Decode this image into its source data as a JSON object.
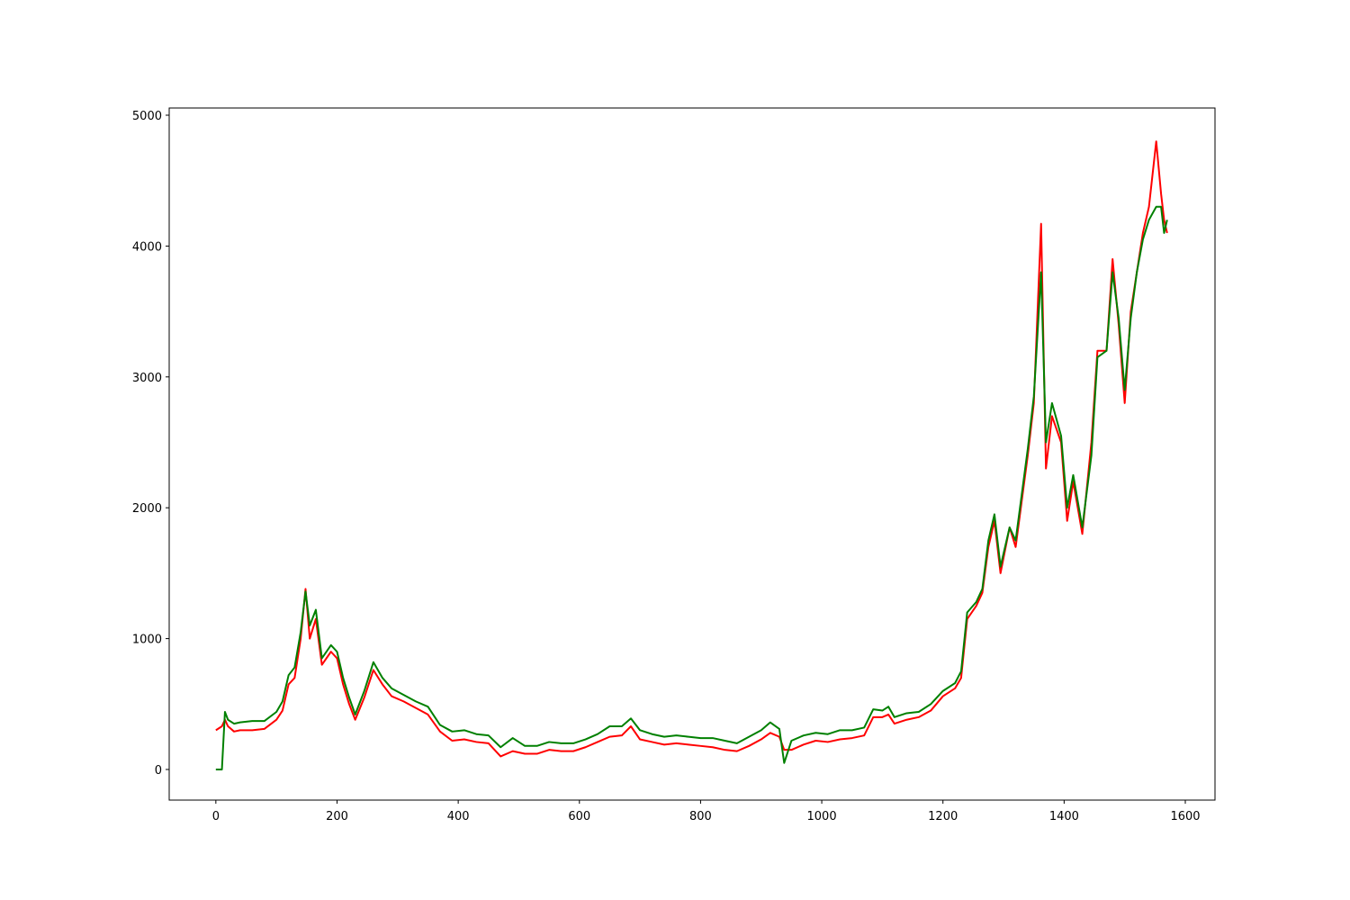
{
  "chart_data": {
    "type": "line",
    "x": [
      0,
      10,
      15,
      20,
      30,
      40,
      60,
      80,
      100,
      110,
      120,
      130,
      140,
      148,
      155,
      165,
      175,
      190,
      200,
      210,
      220,
      230,
      245,
      260,
      275,
      290,
      310,
      330,
      350,
      370,
      390,
      410,
      430,
      450,
      470,
      490,
      510,
      530,
      550,
      570,
      590,
      610,
      630,
      650,
      670,
      685,
      700,
      720,
      740,
      760,
      780,
      800,
      820,
      840,
      860,
      880,
      900,
      915,
      930,
      938,
      950,
      970,
      990,
      1010,
      1030,
      1050,
      1070,
      1085,
      1100,
      1110,
      1120,
      1140,
      1160,
      1180,
      1200,
      1220,
      1230,
      1240,
      1255,
      1265,
      1275,
      1285,
      1295,
      1310,
      1320,
      1330,
      1340,
      1350,
      1362,
      1370,
      1380,
      1395,
      1405,
      1415,
      1430,
      1445,
      1455,
      1470,
      1480,
      1490,
      1500,
      1510,
      1520,
      1530,
      1540,
      1552,
      1560,
      1565,
      1570
    ],
    "series": [
      {
        "color": "#ff0000",
        "values": [
          300,
          330,
          380,
          330,
          290,
          300,
          300,
          310,
          380,
          450,
          650,
          700,
          1000,
          1380,
          1000,
          1150,
          800,
          900,
          850,
          650,
          500,
          380,
          550,
          760,
          650,
          560,
          520,
          470,
          420,
          290,
          220,
          230,
          210,
          200,
          100,
          140,
          120,
          120,
          150,
          140,
          140,
          170,
          210,
          250,
          260,
          330,
          230,
          210,
          190,
          200,
          190,
          180,
          170,
          150,
          140,
          180,
          230,
          280,
          250,
          150,
          150,
          190,
          220,
          210,
          230,
          240,
          260,
          400,
          400,
          420,
          350,
          380,
          400,
          450,
          560,
          620,
          700,
          1150,
          1250,
          1350,
          1700,
          1900,
          1500,
          1850,
          1700,
          2050,
          2400,
          2800,
          4170,
          2300,
          2700,
          2500,
          1900,
          2200,
          1800,
          2500,
          3200,
          3200,
          3900,
          3400,
          2800,
          3500,
          3800,
          4100,
          4300,
          4800,
          4400,
          4200,
          4100
        ]
      },
      {
        "color": "#008000",
        "values": [
          0,
          0,
          440,
          380,
          350,
          360,
          370,
          370,
          440,
          520,
          720,
          780,
          1050,
          1360,
          1100,
          1220,
          850,
          950,
          900,
          700,
          550,
          420,
          600,
          820,
          700,
          620,
          570,
          520,
          480,
          340,
          290,
          300,
          270,
          260,
          170,
          240,
          180,
          180,
          210,
          200,
          200,
          230,
          270,
          330,
          330,
          390,
          300,
          270,
          250,
          260,
          250,
          240,
          240,
          220,
          200,
          250,
          300,
          360,
          310,
          50,
          220,
          260,
          280,
          270,
          300,
          300,
          320,
          460,
          450,
          480,
          400,
          430,
          440,
          500,
          600,
          660,
          750,
          1200,
          1280,
          1380,
          1750,
          1950,
          1550,
          1850,
          1750,
          2100,
          2450,
          2850,
          3800,
          2500,
          2800,
          2550,
          2000,
          2250,
          1850,
          2400,
          3150,
          3200,
          3800,
          3450,
          2900,
          3450,
          3800,
          4050,
          4200,
          4300,
          4300,
          4100,
          4200
        ]
      }
    ],
    "xlim": [
      -77,
      1649
    ],
    "ylim": [
      -234,
      5055
    ],
    "xticks": [
      0,
      200,
      400,
      600,
      800,
      1000,
      1200,
      1400,
      1600
    ],
    "yticks": [
      0,
      1000,
      2000,
      3000,
      4000,
      5000
    ]
  }
}
